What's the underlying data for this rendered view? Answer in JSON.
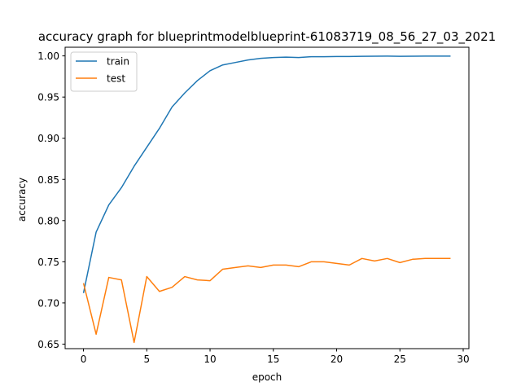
{
  "chart_data": {
    "type": "line",
    "title": "accuracy graph for blueprintmodelblueprint-61083719_08_56_27_03_2021",
    "xlabel": "epoch",
    "ylabel": "accuracy",
    "xlim": [
      -1.45,
      30.45
    ],
    "ylim": [
      0.6445,
      1.0105
    ],
    "xticks": [
      0,
      5,
      10,
      15,
      20,
      25,
      30
    ],
    "yticks": [
      0.65,
      0.7,
      0.75,
      0.8,
      0.85,
      0.9,
      0.95,
      1.0
    ],
    "ytick_labels": [
      "0.65",
      "0.70",
      "0.75",
      "0.80",
      "0.85",
      "0.90",
      "0.95",
      "1.00"
    ],
    "grid": false,
    "legend_position": "top-left",
    "x": [
      0,
      1,
      2,
      3,
      4,
      5,
      6,
      7,
      8,
      9,
      10,
      11,
      12,
      13,
      14,
      15,
      16,
      17,
      18,
      19,
      20,
      21,
      22,
      23,
      24,
      25,
      26,
      27,
      28,
      29
    ],
    "series": [
      {
        "name": "train",
        "color": "#1f77b4",
        "values": [
          0.712,
          0.786,
          0.819,
          0.84,
          0.866,
          0.889,
          0.912,
          0.938,
          0.955,
          0.97,
          0.982,
          0.989,
          0.992,
          0.995,
          0.997,
          0.998,
          0.9985,
          0.998,
          0.999,
          0.999,
          0.9993,
          0.9993,
          0.9995,
          0.9996,
          0.9997,
          0.9995,
          0.9996,
          0.9997,
          0.9998,
          0.9998
        ]
      },
      {
        "name": "test",
        "color": "#ff7f0e",
        "values": [
          0.724,
          0.662,
          0.731,
          0.728,
          0.652,
          0.732,
          0.714,
          0.719,
          0.732,
          0.728,
          0.727,
          0.741,
          0.743,
          0.745,
          0.743,
          0.746,
          0.746,
          0.744,
          0.75,
          0.75,
          0.748,
          0.746,
          0.754,
          0.751,
          0.754,
          0.749,
          0.753,
          0.754,
          0.754,
          0.754
        ]
      }
    ]
  }
}
